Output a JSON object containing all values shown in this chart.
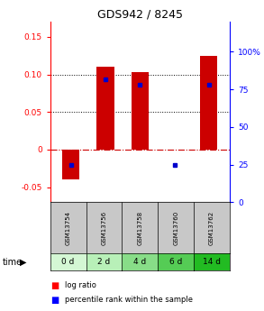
{
  "title": "GDS942 / 8245",
  "samples": [
    "GSM13754",
    "GSM13756",
    "GSM13758",
    "GSM13760",
    "GSM13762"
  ],
  "time_labels": [
    "0 d",
    "2 d",
    "4 d",
    "6 d",
    "14 d"
  ],
  "log_ratio": [
    -0.04,
    0.11,
    0.103,
    0.0,
    0.125
  ],
  "percentile_rank": [
    25,
    82,
    78,
    25,
    78
  ],
  "ylim_left": [
    -0.07,
    0.17
  ],
  "ylim_right": [
    0,
    120
  ],
  "yticks_left": [
    -0.05,
    0.0,
    0.05,
    0.1,
    0.15
  ],
  "yticks_right": [
    0,
    25,
    50,
    75,
    100
  ],
  "ytick_labels_right": [
    "0",
    "25",
    "50",
    "75",
    "100%"
  ],
  "bar_color": "#cc0000",
  "dot_color": "#0000cc",
  "zero_line_color": "#cc0000",
  "grid_color": "#000000",
  "cell_gray": "#c8c8c8",
  "time_colors": [
    "#d4f7d4",
    "#b8f0b8",
    "#88dd88",
    "#55cc55",
    "#22bb22"
  ],
  "bar_width": 0.5
}
